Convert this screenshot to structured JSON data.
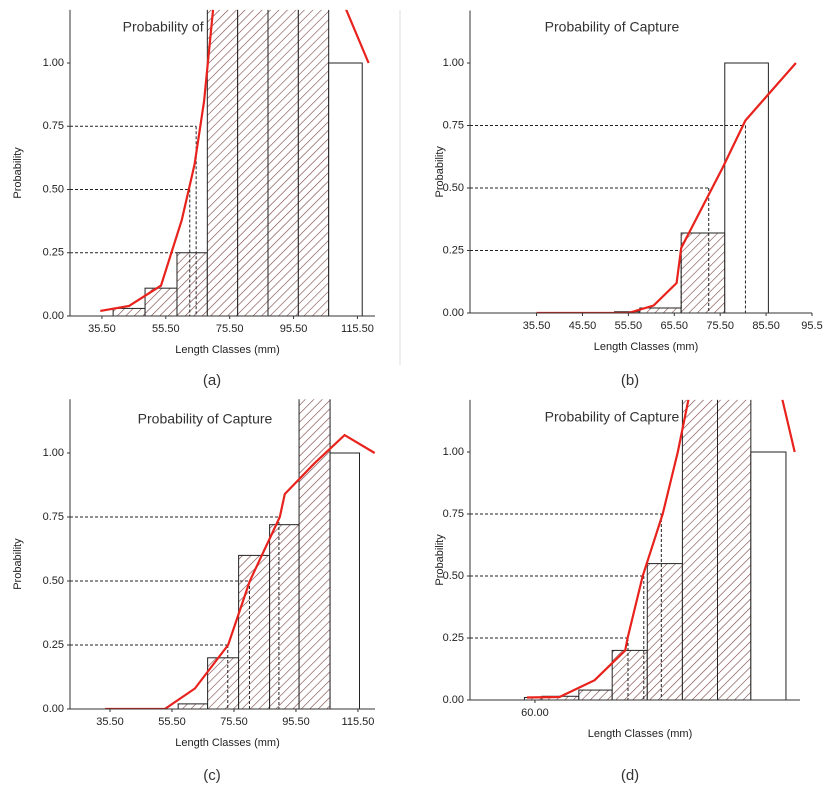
{
  "chart_data": [
    {
      "type": "histogram",
      "title": "Probability of Capture",
      "x_label": "Length Classes (mm)",
      "y_label": "Probability",
      "panel_label": "(a)",
      "bins": [
        39,
        49,
        59,
        68.5,
        78,
        87.5,
        97,
        106.5,
        117
      ],
      "values": [
        0.03,
        0.11,
        0.25,
        1.3,
        1.3,
        1.3,
        1.3,
        1.0
      ],
      "hatched": [
        true,
        true,
        true,
        true,
        true,
        true,
        true,
        false
      ],
      "bar_color": "#7a4545",
      "line": {
        "x": [
          35,
          44,
          54,
          60.5,
          64.5,
          67.5,
          71,
          109,
          119
        ],
        "values": [
          0.02,
          0.04,
          0.12,
          0.38,
          0.6,
          0.85,
          1.3,
          1.3,
          1.0
        ],
        "color": "#e8221c"
      },
      "ref_levels": [
        0.25,
        0.5,
        0.75
      ],
      "ref_x": [
        59,
        63,
        65
      ],
      "xlim": [
        25.5,
        121
      ],
      "ylim": [
        0,
        1.21
      ],
      "xticks": [
        {
          "value": 35.5,
          "label": "35.50"
        },
        {
          "value": 55.5,
          "label": "55.50"
        },
        {
          "value": 75.5,
          "label": "75.50"
        },
        {
          "value": 95.5,
          "label": "95.50"
        },
        {
          "value": 115.5,
          "label": "115.50"
        }
      ],
      "yticks": [
        {
          "value": 0,
          "label": "0.00"
        },
        {
          "value": 0.25,
          "label": "0.25"
        },
        {
          "value": 0.5,
          "label": "0.50"
        },
        {
          "value": 0.75,
          "label": "0.75"
        },
        {
          "value": 1,
          "label": "1.00"
        }
      ]
    },
    {
      "type": "histogram",
      "title": "Probability of Capture",
      "x_label": "Length Classes (mm)",
      "y_label": "Probability",
      "panel_label": "(b)",
      "bins": [
        52.5,
        58,
        67,
        76.5,
        86
      ],
      "values": [
        0.005,
        0.02,
        0.32,
        1.0
      ],
      "hatched": [
        true,
        true,
        true,
        false
      ],
      "bar_color": "#7a4545",
      "line": {
        "x": [
          35.5,
          45.5,
          55.5,
          61,
          66,
          67,
          76,
          81,
          92
        ],
        "values": [
          0,
          0,
          0,
          0.03,
          0.12,
          0.26,
          0.58,
          0.77,
          1.0
        ],
        "color": "#e8221c"
      },
      "ref_levels": [
        0.25,
        0.5,
        0.75
      ],
      "ref_x": [
        67,
        73,
        81
      ],
      "xlim": [
        21,
        95.5
      ],
      "ylim": [
        0,
        1.21
      ],
      "xticks": [
        {
          "value": 35.5,
          "label": "35.50"
        },
        {
          "value": 45.5,
          "label": "45.50"
        },
        {
          "value": 55.5,
          "label": "55.50"
        },
        {
          "value": 65.5,
          "label": "65.50"
        },
        {
          "value": 75.5,
          "label": "75.50"
        },
        {
          "value": 85.5,
          "label": "85.50"
        },
        {
          "value": 95.5,
          "label": "95.5"
        }
      ],
      "yticks": [
        {
          "value": 0,
          "label": "0.00"
        },
        {
          "value": 0.25,
          "label": "0.25"
        },
        {
          "value": 0.5,
          "label": "0.50"
        },
        {
          "value": 0.75,
          "label": "0.75"
        },
        {
          "value": 1,
          "label": "1.00"
        }
      ]
    },
    {
      "type": "histogram",
      "title": "Probability of Capture",
      "x_label": "Length Classes (mm)",
      "y_label": "Probability",
      "panel_label": "(c)",
      "bins": [
        57.5,
        67,
        77,
        87,
        96.5,
        106.5,
        116
      ],
      "values": [
        0.02,
        0.2,
        0.6,
        0.72,
        1.3,
        1.0
      ],
      "hatched": [
        true,
        true,
        true,
        true,
        true,
        false
      ],
      "bar_color": "#7a4545",
      "line": {
        "x": [
          33.9,
          53.2,
          62.9,
          73.6,
          80.6,
          90.3,
          91.9,
          101.5,
          111.2,
          120.9
        ],
        "values": [
          0,
          0,
          0.08,
          0.25,
          0.5,
          0.75,
          0.84,
          0.96,
          1.07,
          1.0
        ],
        "color": "#e8221c"
      },
      "ref_levels": [
        0.25,
        0.5,
        0.75
      ],
      "ref_x": [
        73.5,
        80.5,
        90
      ],
      "xlim": [
        22.6,
        121
      ],
      "ylim": [
        0,
        1.21
      ],
      "xticks": [
        {
          "value": 35.5,
          "label": "35.50"
        },
        {
          "value": 55.5,
          "label": "55.50"
        },
        {
          "value": 75.5,
          "label": "75.50"
        },
        {
          "value": 95.5,
          "label": "95.50"
        },
        {
          "value": 115.5,
          "label": "115.50"
        }
      ],
      "yticks": [
        {
          "value": 0,
          "label": "0.00"
        },
        {
          "value": 0.25,
          "label": "0.25"
        },
        {
          "value": 0.5,
          "label": "0.50"
        },
        {
          "value": 0.75,
          "label": "0.75"
        },
        {
          "value": 1,
          "label": "1.00"
        }
      ]
    },
    {
      "type": "histogram",
      "title": "Probability of Capture",
      "x_label": "Length Classes (mm)",
      "y_label": "Probability",
      "panel_label": "(d)",
      "bins": [
        57,
        62,
        72.5,
        82,
        92,
        102,
        112,
        121.5,
        131.5
      ],
      "values": [
        0.01,
        0.015,
        0.04,
        0.2,
        0.55,
        1.3,
        1.3,
        1.0
      ],
      "hatched": [
        true,
        true,
        true,
        true,
        true,
        true,
        true,
        false
      ],
      "bar_color": "#7a4545",
      "line": {
        "x": [
          57.7,
          67,
          77,
          85.7,
          86.4,
          90.7,
          96.4,
          100.7,
          105,
          129,
          134
        ],
        "values": [
          0.01,
          0.012,
          0.08,
          0.2,
          0.25,
          0.5,
          0.75,
          1.0,
          1.3,
          1.3,
          1.0
        ],
        "color": "#e8221c"
      },
      "ref_levels": [
        0.25,
        0.5,
        0.75
      ],
      "ref_x": [
        86.5,
        91,
        96
      ],
      "xlim": [
        41.5,
        135.5
      ],
      "ylim": [
        0,
        1.21
      ],
      "xticks": [
        {
          "value": 60,
          "label": "60.00"
        }
      ],
      "yticks": [
        {
          "value": 0,
          "label": "0.00"
        },
        {
          "value": 0.25,
          "label": "0.25"
        },
        {
          "value": 0.5,
          "label": "0.50"
        },
        {
          "value": 0.75,
          "label": "0.75"
        },
        {
          "value": 1,
          "label": "1.00"
        }
      ]
    }
  ]
}
